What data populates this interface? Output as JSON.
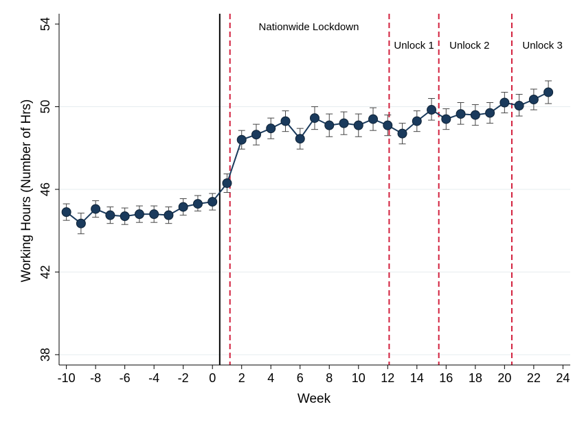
{
  "chart_data": {
    "type": "line",
    "title": "",
    "xlabel": "Week",
    "ylabel": "Working Hours (Number of Hrs)",
    "xlim": [
      -10.5,
      24.5
    ],
    "ylim": [
      37.5,
      54.5
    ],
    "x_ticks": [
      -10,
      -8,
      -6,
      -4,
      -2,
      0,
      2,
      4,
      6,
      8,
      10,
      12,
      14,
      16,
      18,
      20,
      22,
      24
    ],
    "y_ticks": [
      38,
      42,
      46,
      50,
      54
    ],
    "grid": "horizontal",
    "legend": "none",
    "series": [
      {
        "x": [
          -10,
          -9,
          -8,
          -7,
          -6,
          -5,
          -4,
          -3,
          -2,
          -1,
          0,
          1,
          2,
          3,
          4,
          5,
          6,
          7,
          8,
          9,
          10,
          11,
          12,
          13,
          14,
          15,
          16,
          17,
          18,
          19,
          20,
          21,
          22,
          23
        ],
        "y": [
          44.9,
          44.35,
          45.05,
          44.75,
          44.7,
          44.8,
          44.8,
          44.75,
          45.15,
          45.3,
          45.4,
          46.3,
          48.4,
          48.65,
          48.95,
          49.3,
          48.45,
          49.45,
          49.1,
          49.2,
          49.1,
          49.4,
          49.1,
          48.7,
          49.3,
          49.85,
          49.4,
          49.65,
          49.6,
          49.7,
          50.2,
          50.05,
          50.35,
          50.7
        ],
        "ci_low": [
          44.5,
          43.85,
          44.65,
          44.35,
          44.3,
          44.4,
          44.4,
          44.35,
          44.75,
          44.95,
          45.0,
          45.85,
          47.95,
          48.15,
          48.45,
          48.8,
          47.95,
          48.9,
          48.55,
          48.65,
          48.55,
          48.85,
          48.6,
          48.2,
          48.8,
          49.35,
          48.9,
          49.15,
          49.1,
          49.2,
          49.7,
          49.55,
          49.85,
          50.15
        ],
        "ci_high": [
          45.3,
          44.85,
          45.45,
          45.15,
          45.1,
          45.2,
          45.2,
          45.15,
          45.55,
          45.7,
          45.8,
          46.75,
          48.85,
          49.15,
          49.45,
          49.8,
          48.95,
          50.0,
          49.65,
          49.75,
          49.65,
          49.95,
          49.6,
          49.2,
          49.8,
          50.4,
          49.9,
          50.2,
          50.1,
          50.2,
          50.7,
          50.6,
          50.85,
          51.25
        ],
        "color": "#1a3a5c"
      }
    ],
    "reference_lines": [
      {
        "x": 0.5,
        "style": "solid",
        "color": "#000000"
      },
      {
        "x": 1.2,
        "style": "dashed",
        "color": "#d21f3c"
      },
      {
        "x": 12.1,
        "style": "dashed",
        "color": "#d21f3c"
      },
      {
        "x": 15.5,
        "style": "dashed",
        "color": "#d21f3c"
      },
      {
        "x": 20.5,
        "style": "dashed",
        "color": "#d21f3c"
      }
    ],
    "annotations": [
      {
        "text": "Nationwide Lockdown",
        "x": 6.6,
        "y": 53.7
      },
      {
        "text": "Unlock 1",
        "x": 13.8,
        "y": 52.8
      },
      {
        "text": "Unlock 2",
        "x": 17.6,
        "y": 52.8
      },
      {
        "text": "Unlock 3",
        "x": 22.6,
        "y": 52.8
      }
    ]
  }
}
